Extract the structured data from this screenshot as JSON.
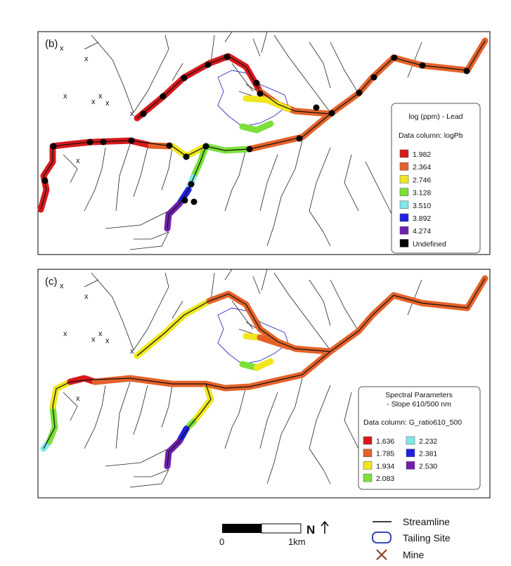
{
  "panels": [
    {
      "label": "(b)",
      "legend": {
        "title": [
          "log (ppm) - Lead"
        ],
        "data_column": "Data column: logPb",
        "items": [
          {
            "label": "1.982",
            "color": "#d7191c"
          },
          {
            "label": "2.364",
            "color": "#e4622a"
          },
          {
            "label": "2.746",
            "color": "#f0e61e"
          },
          {
            "label": "3.128",
            "color": "#7de03a"
          },
          {
            "label": "3.510",
            "color": "#7fe8e8"
          },
          {
            "label": "3.892",
            "color": "#2020e0"
          },
          {
            "label": "4.274",
            "color": "#7020b0"
          },
          {
            "label": "Undefined",
            "color": "#000000"
          }
        ]
      }
    },
    {
      "label": "(c)",
      "legend": {
        "title": [
          "Spectral Parameters",
          "- Slope 610/500 nm"
        ],
        "data_column": "Data column: G_ratio610_500",
        "items": [
          {
            "label": "1.636",
            "color": "#d7191c"
          },
          {
            "label": "1.785",
            "color": "#e4622a"
          },
          {
            "label": "1.934",
            "color": "#f0e61e"
          },
          {
            "label": "2.083",
            "color": "#7de03a"
          },
          {
            "label": "2.232",
            "color": "#7fe8e8"
          },
          {
            "label": "2.381",
            "color": "#2020e0"
          },
          {
            "label": "2.530",
            "color": "#7020b0"
          }
        ]
      }
    }
  ],
  "scale_bar": {
    "start": "0",
    "end": "1km"
  },
  "north": "N",
  "key": [
    "Streamline",
    "Tailing Site",
    "Mine"
  ]
}
